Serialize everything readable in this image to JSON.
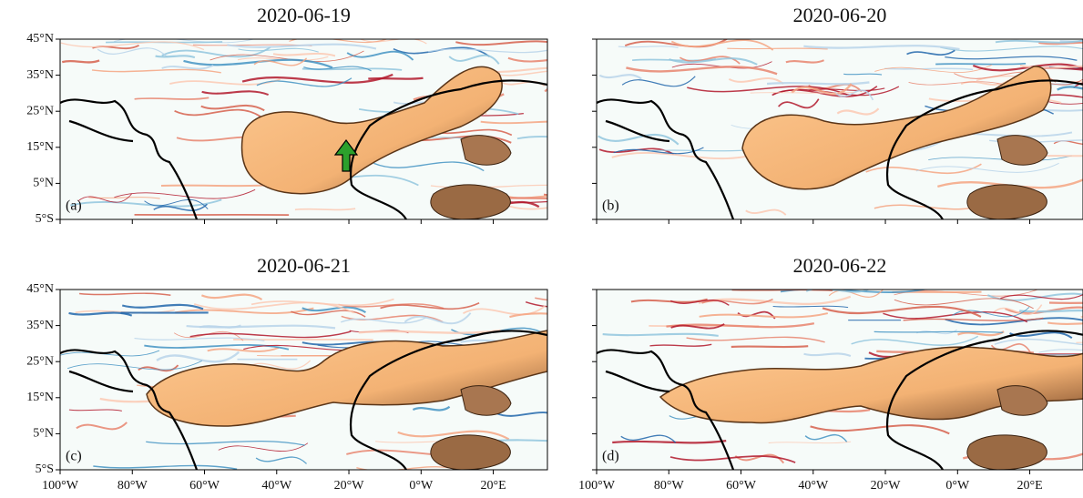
{
  "panels": [
    {
      "title": "2020-06-19",
      "label": "(a)"
    },
    {
      "title": "2020-06-20",
      "label": "(b)"
    },
    {
      "title": "2020-06-21",
      "label": "(c)"
    },
    {
      "title": "2020-06-22",
      "label": "(d)"
    }
  ],
  "lat_ticks": [
    "45°N",
    "35°N",
    "25°N",
    "15°N",
    "5°N",
    "5°S"
  ],
  "lon_ticks": [
    "100°W",
    "80°W",
    "60°W",
    "40°W",
    "20°W",
    "0°W",
    "20°E"
  ]
}
